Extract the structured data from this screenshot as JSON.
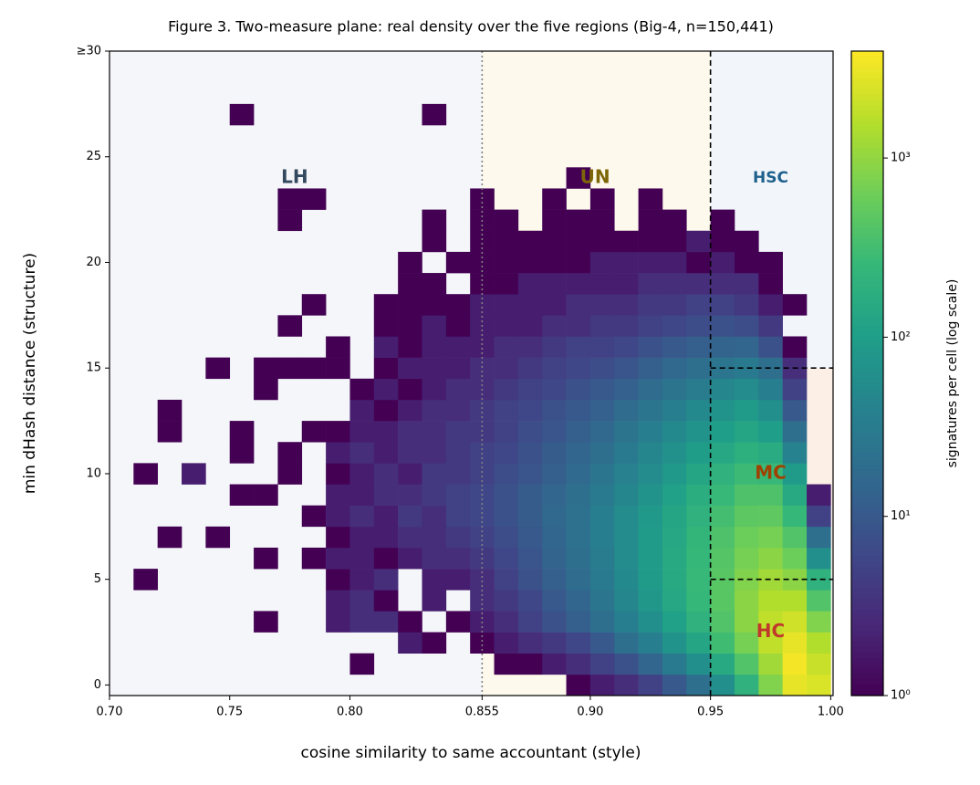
{
  "chart_data": {
    "type": "heatmap",
    "title": "Figure 3. Two-measure plane: real density over the five regions (Big-4, n=150,441)",
    "x_label": "cosine similarity to same accountant (style)",
    "y_label": "min dHash distance (structure)",
    "xlim": [
      0.7,
      1.001
    ],
    "ylim": [
      -0.5,
      30
    ],
    "xticks": [
      {
        "value": 0.7,
        "label": "0.70"
      },
      0.75,
      {
        "value": 0.8,
        "label": "0.80"
      },
      0.855,
      {
        "value": 0.9,
        "label": "0.90"
      },
      0.95,
      {
        "value": 1.0,
        "label": "1.00"
      }
    ],
    "yticks": [
      0,
      5,
      10,
      15,
      20,
      25,
      {
        "value": 30,
        "label": "≥30"
      }
    ],
    "colormap": "viridis",
    "log_color": true,
    "colorbar": {
      "label": "signatures per cell (log scale)",
      "clim": [
        1,
        3950
      ],
      "ticks": [
        {
          "value": 1,
          "label": "10⁰"
        },
        {
          "value": 10,
          "label": "10¹"
        },
        {
          "value": 100,
          "label": "10²"
        },
        {
          "value": 1000,
          "label": "10³"
        }
      ]
    },
    "regions": [
      {
        "name": "LH",
        "color": "#f4f6f9",
        "label_color": "#34495e",
        "x": [
          0.7,
          0.855
        ],
        "y": [
          -0.5,
          30
        ]
      },
      {
        "name": "UN",
        "color": "#fdf9ec",
        "label_color": "#7d6608",
        "x": [
          0.855,
          0.95
        ],
        "y": [
          -0.5,
          30
        ]
      },
      {
        "name": "HSC",
        "color": "#f2f6fb",
        "label_color": "#1f618d",
        "x": [
          0.95,
          1.001
        ],
        "y": [
          15,
          30
        ]
      },
      {
        "name": "MC",
        "color": "#fbefe6",
        "label_color": "#a04000",
        "x": [
          0.95,
          1.001
        ],
        "y": [
          5,
          15
        ]
      },
      {
        "name": "HC",
        "color": "#fbf3ef",
        "label_color": "#c0392b",
        "x": [
          0.95,
          1.001
        ],
        "y": [
          -0.5,
          5
        ]
      }
    ],
    "vlines": [
      {
        "x": 0.855,
        "dash": "dotted",
        "color": "#808080"
      },
      {
        "x": 0.95,
        "dash": "dashed",
        "color": "#000000"
      }
    ],
    "hlines": [
      {
        "y": 15,
        "from": 0.95,
        "dash": "dashed",
        "color": "#000000"
      },
      {
        "y": 5,
        "from": 0.95,
        "dash": "dashed",
        "color": "#000000"
      }
    ],
    "x_bins": [
      0.7,
      0.71,
      0.72,
      0.73,
      0.74,
      0.75,
      0.76,
      0.77,
      0.78,
      0.79,
      0.8,
      0.81,
      0.82,
      0.83,
      0.84,
      0.85,
      0.86,
      0.87,
      0.88,
      0.89,
      0.9,
      0.91,
      0.92,
      0.93,
      0.94,
      0.95,
      0.96,
      0.97,
      0.98,
      0.99,
      1.0
    ],
    "y": [
      0,
      1,
      2,
      3,
      4,
      5,
      6,
      7,
      8,
      9,
      10,
      11,
      12,
      13,
      14,
      15,
      16,
      17,
      18,
      19,
      20,
      21,
      22,
      23,
      24,
      25,
      26,
      27,
      28,
      29
    ],
    "z": [
      [
        null,
        null,
        null,
        null,
        null,
        null,
        null,
        null,
        null,
        null,
        null,
        null,
        null,
        null,
        null,
        null,
        null,
        null,
        null,
        1,
        2,
        3,
        5,
        10,
        20,
        60,
        200,
        800,
        3000,
        2500
      ],
      [
        null,
        null,
        null,
        null,
        null,
        null,
        null,
        null,
        null,
        null,
        1,
        null,
        null,
        null,
        null,
        null,
        1,
        1,
        2,
        3,
        5,
        8,
        15,
        30,
        60,
        150,
        400,
        1200,
        3500,
        2000
      ],
      [
        null,
        null,
        null,
        null,
        null,
        null,
        null,
        null,
        null,
        null,
        null,
        null,
        2,
        1,
        null,
        1,
        2,
        3,
        4,
        6,
        10,
        20,
        35,
        70,
        130,
        300,
        700,
        1800,
        3000,
        1500
      ],
      [
        null,
        null,
        null,
        null,
        null,
        null,
        1,
        null,
        null,
        2,
        3,
        3,
        1,
        null,
        1,
        2,
        3,
        5,
        8,
        12,
        20,
        35,
        60,
        110,
        200,
        400,
        900,
        1800,
        2200,
        800
      ],
      [
        null,
        null,
        null,
        null,
        null,
        null,
        null,
        null,
        null,
        2,
        3,
        1,
        null,
        2,
        null,
        3,
        4,
        6,
        10,
        15,
        25,
        45,
        80,
        140,
        250,
        450,
        900,
        1500,
        1500,
        400
      ],
      [
        null,
        1,
        null,
        null,
        null,
        null,
        null,
        null,
        null,
        1,
        2,
        3,
        null,
        2,
        2,
        3,
        5,
        8,
        12,
        18,
        30,
        50,
        90,
        150,
        260,
        450,
        800,
        1200,
        900,
        200
      ],
      [
        null,
        null,
        null,
        null,
        null,
        null,
        1,
        null,
        1,
        2,
        2,
        1,
        2,
        3,
        3,
        4,
        6,
        9,
        14,
        20,
        32,
        55,
        90,
        150,
        250,
        420,
        700,
        900,
        600,
        60
      ],
      [
        null,
        null,
        1,
        null,
        1,
        null,
        null,
        null,
        null,
        1,
        2,
        2,
        3,
        3,
        4,
        5,
        7,
        10,
        15,
        22,
        35,
        55,
        90,
        140,
        230,
        380,
        600,
        700,
        400,
        20
      ],
      [
        null,
        null,
        null,
        null,
        null,
        null,
        null,
        null,
        1,
        2,
        3,
        2,
        4,
        3,
        5,
        6,
        8,
        11,
        16,
        22,
        35,
        55,
        85,
        130,
        200,
        320,
        480,
        500,
        250,
        5
      ],
      [
        null,
        null,
        null,
        null,
        null,
        1,
        1,
        null,
        null,
        2,
        2,
        3,
        3,
        4,
        5,
        6,
        8,
        11,
        15,
        20,
        30,
        45,
        70,
        110,
        170,
        260,
        380,
        380,
        150,
        2
      ],
      [
        null,
        1,
        null,
        2,
        null,
        null,
        null,
        1,
        null,
        1,
        2,
        3,
        2,
        4,
        4,
        5,
        7,
        9,
        12,
        17,
        25,
        38,
        55,
        85,
        130,
        200,
        280,
        260,
        90,
        null
      ],
      [
        null,
        null,
        null,
        null,
        null,
        1,
        null,
        1,
        null,
        2,
        3,
        2,
        3,
        3,
        4,
        5,
        6,
        8,
        11,
        15,
        20,
        30,
        45,
        65,
        95,
        140,
        190,
        160,
        40,
        null
      ],
      [
        null,
        null,
        1,
        null,
        null,
        1,
        null,
        null,
        1,
        1,
        2,
        2,
        3,
        3,
        4,
        4,
        5,
        7,
        9,
        12,
        16,
        24,
        35,
        50,
        70,
        100,
        130,
        100,
        20,
        null
      ],
      [
        null,
        null,
        1,
        null,
        null,
        null,
        null,
        null,
        null,
        null,
        2,
        1,
        2,
        3,
        3,
        4,
        5,
        6,
        8,
        10,
        13,
        18,
        25,
        35,
        50,
        70,
        90,
        60,
        10,
        null
      ],
      [
        null,
        null,
        null,
        null,
        null,
        null,
        1,
        null,
        null,
        null,
        1,
        2,
        1,
        2,
        3,
        3,
        4,
        5,
        6,
        8,
        10,
        13,
        18,
        24,
        32,
        45,
        55,
        35,
        5,
        null
      ],
      [
        null,
        null,
        null,
        null,
        1,
        null,
        1,
        1,
        1,
        1,
        null,
        1,
        2,
        2,
        2,
        3,
        3,
        4,
        5,
        6,
        7,
        9,
        12,
        16,
        20,
        25,
        30,
        20,
        3,
        null
      ],
      [
        null,
        null,
        null,
        null,
        null,
        null,
        null,
        null,
        null,
        1,
        null,
        2,
        1,
        2,
        2,
        2,
        3,
        3,
        4,
        5,
        5,
        6,
        8,
        10,
        12,
        14,
        15,
        8,
        1,
        null
      ],
      [
        null,
        null,
        null,
        null,
        null,
        null,
        null,
        1,
        null,
        null,
        null,
        1,
        1,
        2,
        1,
        2,
        2,
        2,
        3,
        3,
        4,
        4,
        5,
        6,
        7,
        8,
        7,
        4,
        null,
        null
      ],
      [
        null,
        null,
        null,
        null,
        null,
        null,
        null,
        null,
        1,
        null,
        null,
        1,
        1,
        1,
        1,
        2,
        2,
        2,
        2,
        3,
        3,
        3,
        4,
        4,
        5,
        5,
        4,
        2,
        1,
        null
      ],
      [
        null,
        null,
        null,
        null,
        null,
        null,
        null,
        null,
        null,
        null,
        null,
        null,
        1,
        1,
        null,
        1,
        1,
        2,
        2,
        2,
        2,
        2,
        3,
        3,
        3,
        3,
        3,
        1,
        null,
        null
      ],
      [
        null,
        null,
        null,
        null,
        null,
        null,
        null,
        null,
        null,
        null,
        null,
        null,
        1,
        null,
        1,
        1,
        1,
        1,
        1,
        1,
        2,
        2,
        2,
        2,
        1,
        2,
        1,
        1,
        null,
        null
      ],
      [
        null,
        null,
        null,
        null,
        null,
        null,
        null,
        null,
        null,
        null,
        null,
        null,
        null,
        1,
        null,
        1,
        1,
        1,
        1,
        1,
        1,
        1,
        1,
        1,
        2,
        1,
        1,
        null,
        null,
        null
      ],
      [
        null,
        null,
        null,
        null,
        null,
        null,
        null,
        1,
        null,
        null,
        null,
        null,
        null,
        1,
        null,
        1,
        1,
        null,
        1,
        1,
        1,
        null,
        1,
        1,
        null,
        1,
        null,
        null,
        null,
        null
      ],
      [
        null,
        null,
        null,
        null,
        null,
        null,
        null,
        1,
        1,
        null,
        null,
        null,
        null,
        null,
        null,
        1,
        null,
        null,
        1,
        null,
        1,
        null,
        1,
        null,
        null,
        null,
        null,
        null,
        null,
        null
      ],
      [
        null,
        null,
        null,
        null,
        null,
        null,
        null,
        null,
        null,
        null,
        null,
        null,
        null,
        null,
        null,
        null,
        null,
        null,
        null,
        1,
        null,
        null,
        null,
        null,
        null,
        null,
        null,
        null,
        null,
        null
      ],
      [
        null,
        null,
        null,
        null,
        null,
        null,
        null,
        null,
        null,
        null,
        null,
        null,
        null,
        null,
        null,
        null,
        null,
        null,
        null,
        null,
        null,
        null,
        null,
        null,
        null,
        null,
        null,
        null,
        null,
        null
      ],
      [
        null,
        null,
        null,
        null,
        null,
        null,
        null,
        null,
        null,
        null,
        null,
        null,
        null,
        null,
        null,
        null,
        null,
        null,
        null,
        null,
        null,
        null,
        null,
        null,
        null,
        null,
        null,
        null,
        null,
        null
      ],
      [
        null,
        null,
        null,
        null,
        null,
        1,
        null,
        null,
        null,
        null,
        null,
        null,
        null,
        1,
        null,
        null,
        null,
        null,
        null,
        null,
        null,
        null,
        null,
        null,
        null,
        null,
        null,
        null,
        null,
        null
      ],
      [
        null,
        null,
        null,
        null,
        null,
        null,
        null,
        null,
        null,
        null,
        null,
        null,
        null,
        null,
        null,
        null,
        null,
        null,
        null,
        null,
        null,
        null,
        null,
        null,
        null,
        null,
        null,
        null,
        null,
        null
      ],
      [
        null,
        null,
        null,
        null,
        null,
        null,
        null,
        null,
        null,
        null,
        null,
        null,
        null,
        null,
        null,
        null,
        null,
        null,
        null,
        null,
        null,
        null,
        null,
        null,
        null,
        null,
        null,
        null,
        null,
        null
      ]
    ]
  }
}
